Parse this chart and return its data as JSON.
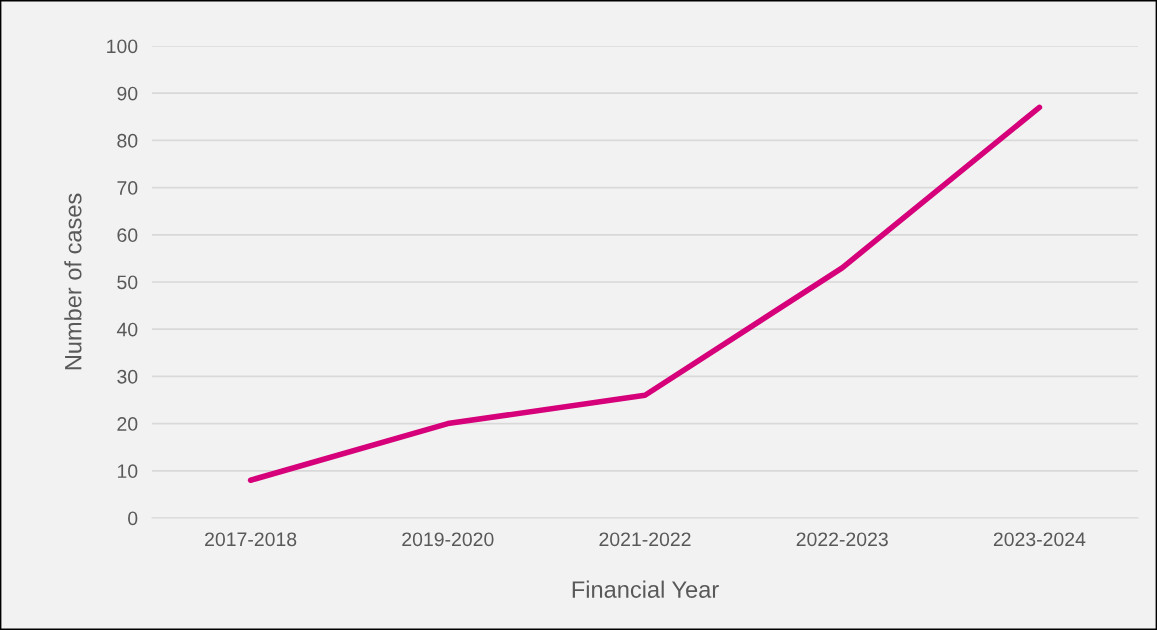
{
  "chart_data": {
    "type": "line",
    "xlabel": "Financial Year",
    "ylabel": "Number of cases",
    "categories": [
      "2017-2018",
      "2019-2020",
      "2021-2022",
      "2022-2023",
      "2023-2024"
    ],
    "series": [
      {
        "color": "#d6007a",
        "values": [
          8,
          20,
          26,
          53,
          87
        ]
      }
    ],
    "ylim": [
      0,
      100
    ],
    "yticks": [
      0,
      10,
      20,
      30,
      40,
      50,
      60,
      70,
      80,
      90,
      100
    ],
    "grid": "y",
    "marker": "none",
    "line_style": "solid"
  }
}
